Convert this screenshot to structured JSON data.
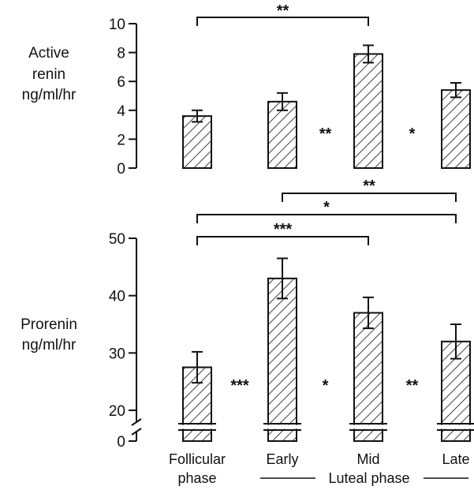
{
  "chart_data": [
    {
      "type": "bar",
      "ylabel": [
        "Active",
        "renin",
        "ng/ml/hr"
      ],
      "ylim": [
        0,
        10
      ],
      "yticks": [
        0,
        2,
        4,
        6,
        8,
        10
      ],
      "categories": [
        "Follicular phase",
        "Early",
        "Mid",
        "Late"
      ],
      "values": [
        3.6,
        4.6,
        7.9,
        5.4
      ],
      "errors": [
        0.4,
        0.6,
        0.6,
        0.5
      ],
      "significance_between": [
        {
          "from": 1,
          "to": 2,
          "label": "**"
        },
        {
          "from": 2,
          "to": 3,
          "label": "*"
        }
      ],
      "brackets": [
        {
          "from": 0,
          "to": 2,
          "label": "**"
        }
      ]
    },
    {
      "type": "bar",
      "ylabel": [
        "Prorenin",
        "ng/ml/hr"
      ],
      "ylim": [
        15,
        50
      ],
      "yticks": [
        0,
        20,
        30,
        40,
        50
      ],
      "axis_break": true,
      "categories": [
        "Follicular phase",
        "Early",
        "Mid",
        "Late"
      ],
      "values": [
        27.5,
        43,
        37,
        32
      ],
      "errors": [
        2.7,
        3.5,
        2.7,
        3
      ],
      "significance_between": [
        {
          "from": 0,
          "to": 1,
          "label": "***"
        },
        {
          "from": 1,
          "to": 2,
          "label": "*"
        },
        {
          "from": 2,
          "to": 3,
          "label": "**"
        }
      ],
      "brackets": [
        {
          "from": 1,
          "to": 3,
          "label": "**"
        },
        {
          "from": 0,
          "to": 3,
          "label": "*"
        },
        {
          "from": 0,
          "to": 2,
          "label": "***"
        }
      ]
    }
  ],
  "x_labels": {
    "follicular_line1": "Follicular",
    "follicular_line2": "phase",
    "early": "Early",
    "mid": "Mid",
    "late": "Late",
    "luteal_group": "Luteal phase"
  }
}
